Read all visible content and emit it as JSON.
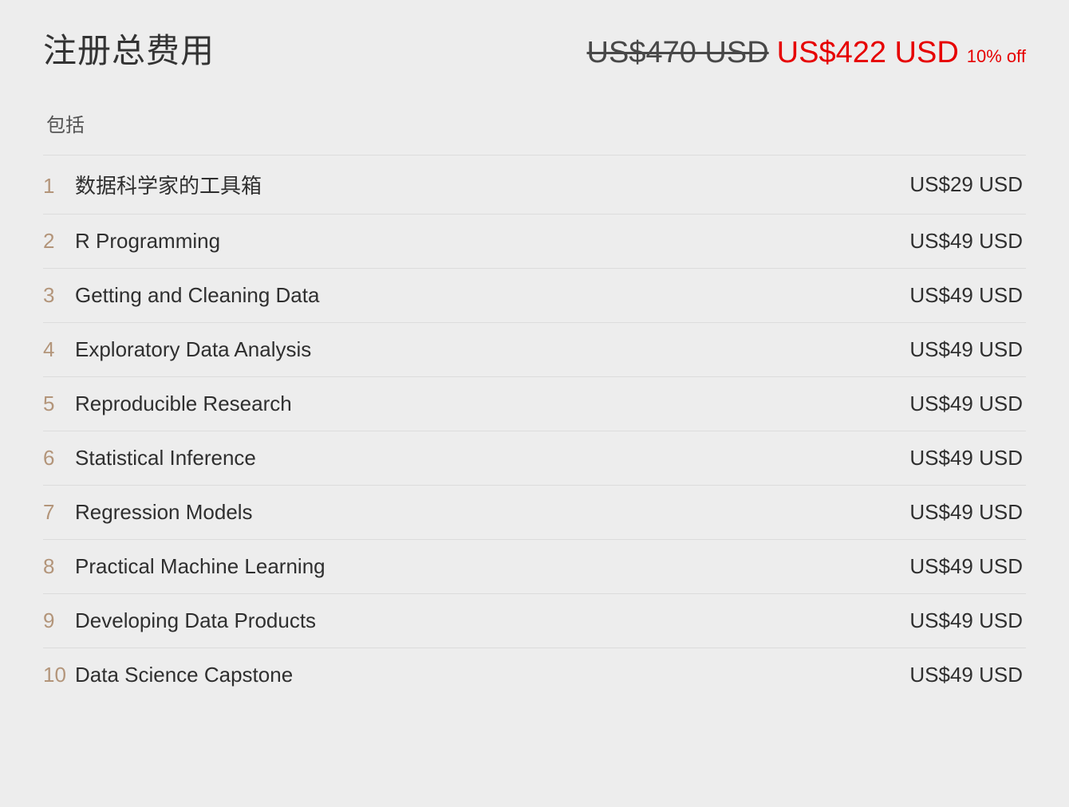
{
  "header": {
    "title": "注册总费用",
    "original_price": "US$470 USD",
    "discounted_price": "US$422 USD",
    "discount_label": "10% off"
  },
  "includes_label": "包括",
  "courses": [
    {
      "num": "1",
      "name": "数据科学家的工具箱",
      "price": "US$29 USD"
    },
    {
      "num": "2",
      "name": "R Programming",
      "price": "US$49 USD"
    },
    {
      "num": "3",
      "name": "Getting and Cleaning Data",
      "price": "US$49 USD"
    },
    {
      "num": "4",
      "name": "Exploratory Data Analysis",
      "price": "US$49 USD"
    },
    {
      "num": "5",
      "name": "Reproducible Research",
      "price": "US$49 USD"
    },
    {
      "num": "6",
      "name": "Statistical Inference",
      "price": "US$49 USD"
    },
    {
      "num": "7",
      "name": "Regression Models",
      "price": "US$49 USD"
    },
    {
      "num": "8",
      "name": "Practical Machine Learning",
      "price": "US$49 USD"
    },
    {
      "num": "9",
      "name": "Developing Data Products",
      "price": "US$49 USD"
    },
    {
      "num": "10",
      "name": "Data Science Capstone",
      "price": "US$49 USD"
    }
  ],
  "colors": {
    "background": "#ededed",
    "title_text": "#333333",
    "original_price_text": "#484848",
    "discount_text": "#e60000",
    "row_border": "#dcdcdc",
    "course_num": "#b3957a",
    "course_text": "#2f2f2f"
  },
  "typography": {
    "title_fontsize": 42,
    "price_fontsize": 38,
    "discount_label_fontsize": 22,
    "includes_fontsize": 24,
    "row_fontsize": 26
  }
}
